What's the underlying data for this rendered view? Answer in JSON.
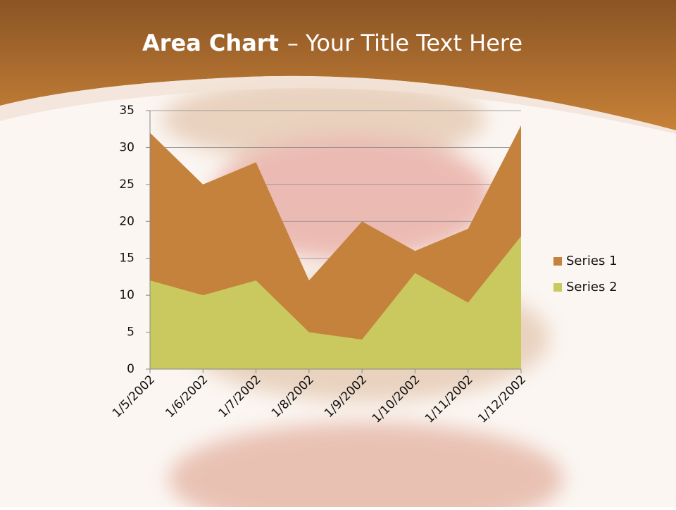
{
  "chart_data": {
    "type": "area",
    "title": {
      "bold": "Area Chart",
      "rest": "– Your Title Text Here"
    },
    "categories": [
      "1/5/2002",
      "1/6/2002",
      "1/7/2002",
      "1/8/2002",
      "1/9/2002",
      "1/10/2002",
      "1/11/2002",
      "1/12/2002"
    ],
    "series": [
      {
        "name": "Series 1",
        "color": "#c5823c",
        "values": [
          32,
          25,
          28,
          12,
          20,
          16,
          19,
          33
        ]
      },
      {
        "name": "Series 2",
        "color": "#c9c960",
        "values": [
          12,
          10,
          12,
          5,
          4,
          13,
          9,
          18
        ]
      }
    ],
    "ylim": [
      0,
      35
    ],
    "yticks": [
      0,
      5,
      10,
      15,
      20,
      25,
      30,
      35
    ],
    "grid": true,
    "legend": "right"
  }
}
